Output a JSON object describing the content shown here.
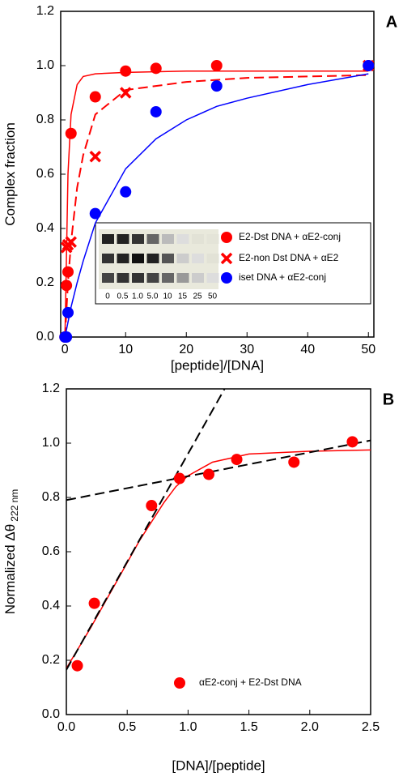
{
  "chart_data": [
    {
      "type": "scatter",
      "panel_label": "A",
      "x_label": "[peptide]/[DNA]",
      "y_label": "Complex  fraction",
      "xlim": [
        -0.7,
        50.9
      ],
      "ylim": [
        0,
        1.2
      ],
      "xticks": [
        0,
        10,
        20,
        30,
        40,
        50
      ],
      "yticks": [
        {
          "value": 0,
          "label": "0.0"
        },
        {
          "value": 0.2,
          "label": "0.2"
        },
        {
          "value": 0.4,
          "label": "0.4"
        },
        {
          "value": 0.6,
          "label": "0.6"
        },
        {
          "value": 0.8,
          "label": "0.8"
        },
        {
          "value": 1,
          "label": "1.0"
        },
        {
          "value": 1.2,
          "label": "1.2"
        }
      ],
      "series": [
        {
          "name": "E2-Dst DNA + αE2-conj",
          "color": "#ff0000",
          "marker": "circle",
          "x": [
            0,
            0.25,
            0.5,
            1,
            5,
            10,
            15,
            25,
            50
          ],
          "values": [
            0,
            0.19,
            0.24,
            0.75,
            0.885,
            0.98,
            0.99,
            1.0,
            1.0
          ]
        },
        {
          "name": "E2-non Dst DNA + αE2",
          "color": "#ff0000",
          "marker": "x",
          "x": [
            0.25,
            0.5,
            1,
            5,
            10,
            50
          ],
          "values": [
            0.33,
            0.34,
            0.35,
            0.665,
            0.9,
            1.0
          ]
        },
        {
          "name": "iset DNA + αE2-conj",
          "color": "#0000ff",
          "marker": "circle",
          "x": [
            0,
            0.25,
            0.5,
            5,
            10,
            15,
            25,
            50
          ],
          "values": [
            0,
            0,
            0.09,
            0.455,
            0.535,
            0.83,
            0.925,
            1.0
          ]
        }
      ],
      "fits": [
        {
          "color": "#ff0000",
          "dashed": false,
          "x": [
            0,
            0.5,
            1,
            2,
            3,
            5,
            10,
            20,
            30,
            40,
            50
          ],
          "values": [
            0,
            0.6,
            0.82,
            0.93,
            0.96,
            0.97,
            0.975,
            0.98,
            0.98,
            0.98,
            0.98
          ]
        },
        {
          "color": "#ff0000",
          "dashed": true,
          "x": [
            0,
            0.5,
            1,
            2,
            3,
            5,
            10,
            20,
            30,
            40,
            50
          ],
          "values": [
            0,
            0.2,
            0.35,
            0.55,
            0.67,
            0.82,
            0.91,
            0.94,
            0.955,
            0.96,
            0.965
          ]
        },
        {
          "color": "#0000ff",
          "dashed": false,
          "x": [
            0,
            1,
            2,
            3,
            5,
            10,
            15,
            20,
            25,
            30,
            40,
            50
          ],
          "values": [
            0,
            0.11,
            0.2,
            0.28,
            0.42,
            0.62,
            0.73,
            0.8,
            0.85,
            0.88,
            0.93,
            0.97
          ]
        }
      ],
      "gel_labels": [
        "0",
        "0.5",
        "1.0",
        "5.0",
        "10",
        "15",
        "25",
        "50"
      ]
    },
    {
      "type": "scatter",
      "panel_label": "B",
      "x_label": "[DNA]/[peptide]",
      "y_label": "Normalized Δθ",
      "y_label_subscript": "222 nm",
      "xlim": [
        0,
        2.5
      ],
      "ylim": [
        0,
        1.2
      ],
      "xticks": [
        {
          "value": 0,
          "label": "0.0"
        },
        {
          "value": 0.5,
          "label": "0.5"
        },
        {
          "value": 1,
          "label": "1.0"
        },
        {
          "value": 1.5,
          "label": "1.5"
        },
        {
          "value": 2,
          "label": "2.0"
        },
        {
          "value": 2.5,
          "label": "2.5"
        }
      ],
      "yticks": [
        {
          "value": 0,
          "label": "0.0"
        },
        {
          "value": 0.2,
          "label": "0.2"
        },
        {
          "value": 0.4,
          "label": "0.4"
        },
        {
          "value": 0.6,
          "label": "0.6"
        },
        {
          "value": 0.8,
          "label": "0.8"
        },
        {
          "value": 1,
          "label": "1.0"
        },
        {
          "value": 1.2,
          "label": "1.2"
        }
      ],
      "series": [
        {
          "name": "αE2-conj + E2-Dst DNA",
          "color": "#ff0000",
          "marker": "circle",
          "x": [
            0.09,
            0.23,
            0.7,
            0.93,
            1.17,
            1.4,
            1.87,
            2.35
          ],
          "values": [
            0.18,
            0.41,
            0.77,
            0.87,
            0.885,
            0.94,
            0.93,
            1.005
          ]
        }
      ],
      "fits": [
        {
          "color": "#ff0000",
          "dashed": false,
          "x": [
            0,
            0.2,
            0.4,
            0.6,
            0.8,
            0.9,
            1.0,
            1.2,
            1.5,
            2.0,
            2.5
          ],
          "values": [
            0.17,
            0.32,
            0.48,
            0.64,
            0.78,
            0.84,
            0.88,
            0.93,
            0.96,
            0.97,
            0.975
          ]
        },
        {
          "color": "#000000",
          "dashed": true,
          "x": [
            0,
            1.3
          ],
          "values": [
            0.165,
            1.2
          ]
        },
        {
          "color": "#000000",
          "dashed": true,
          "x": [
            0,
            2.5
          ],
          "values": [
            0.79,
            1.01
          ]
        }
      ]
    }
  ]
}
